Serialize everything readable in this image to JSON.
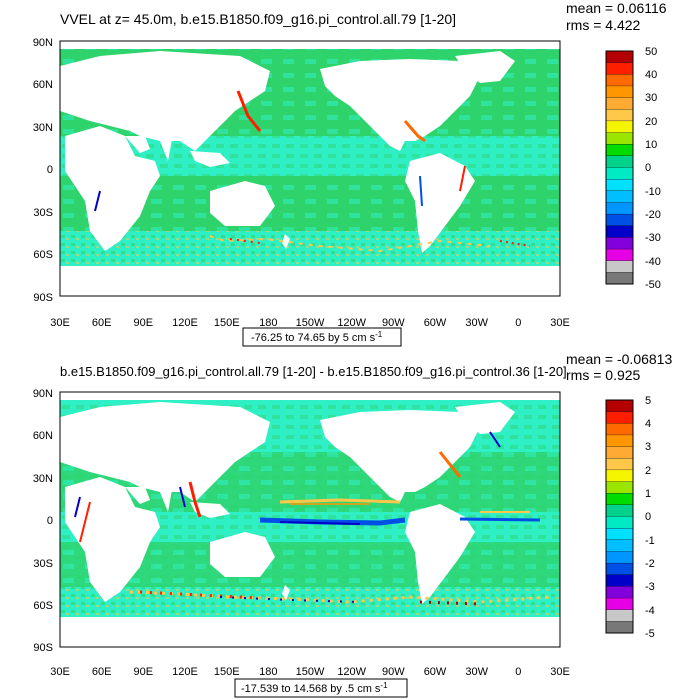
{
  "panels": [
    {
      "title": "VVEL at z=  45.0m, b.e15.B1850.f09_g16.pi_control.all.79 [1-20]",
      "mean_text": "mean = 0.06116",
      "rms_text": "rms = 4.422",
      "range_text": "-76.25 to 74.65 by 5 cm s",
      "range_sup": "-1",
      "colorbar_labels": [
        "50",
        "40",
        "30",
        "20",
        "10",
        "0",
        "-10",
        "-20",
        "-30",
        "-40",
        "-50"
      ]
    },
    {
      "title": "b.e15.B1850.f09_g16.pi_control.all.79 [1-20] - b.e15.B1850.f09_g16.pi_control.36 [1-20]",
      "mean_text": "mean = -0.06813",
      "rms_text": "rms = 0.925",
      "range_text": "-17.539 to 14.568 by .5 cm s",
      "range_sup": "-1",
      "colorbar_labels": [
        "5",
        "4",
        "3",
        "2",
        "1",
        "0",
        "-1",
        "-2",
        "-3",
        "-4",
        "-5"
      ]
    }
  ],
  "colors": {
    "colorbar": [
      "#b40000",
      "#ff1e00",
      "#ff6a00",
      "#ff9600",
      "#ffaa32",
      "#ffc84b",
      "#f5f500",
      "#9be600",
      "#00dc00",
      "#00d28c",
      "#00ebc3",
      "#00e1ff",
      "#00beff",
      "#0096ff",
      "#0050e6",
      "#0000c8",
      "#8200dc",
      "#e600e6",
      "#c8c8c8",
      "#787878"
    ],
    "land": "#ffffff",
    "ocean_a": "#2ed36c",
    "ocean_b": "#2ff0c4",
    "strong_pos": "#ff1e00",
    "strong_neg": "#0000c8"
  },
  "chart_data": [
    {
      "type": "heatmap",
      "title": "VVEL at z=  45.0m, b.e15.B1850.f09_g16.pi_control.all.79 [1-20]",
      "xlabel": "",
      "ylabel": "",
      "x_ticks": [
        "30E",
        "60E",
        "90E",
        "120E",
        "150E",
        "180",
        "150W",
        "120W",
        "90W",
        "60W",
        "30W",
        "0",
        "30E"
      ],
      "y_ticks": [
        "90N",
        "60N",
        "30N",
        "0",
        "30S",
        "60S",
        "90S"
      ],
      "xlim": [
        30,
        390
      ],
      "ylim": [
        -90,
        90
      ],
      "levels_min": -50,
      "levels_max": 50,
      "level_step": 5,
      "data_min": -76.25,
      "data_max": 74.65,
      "units": "cm s-1",
      "mean": 0.06116,
      "rms": 4.422
    },
    {
      "type": "heatmap",
      "title": "b.e15.B1850.f09_g16.pi_control.all.79 [1-20] - b.e15.B1850.f09_g16.pi_control.36 [1-20]",
      "xlabel": "",
      "ylabel": "",
      "x_ticks": [
        "30E",
        "60E",
        "90E",
        "120E",
        "150E",
        "180",
        "150W",
        "120W",
        "90W",
        "60W",
        "30W",
        "0",
        "30E"
      ],
      "y_ticks": [
        "90N",
        "60N",
        "30N",
        "0",
        "30S",
        "60S",
        "90S"
      ],
      "xlim": [
        30,
        390
      ],
      "ylim": [
        -90,
        90
      ],
      "levels_min": -5,
      "levels_max": 5,
      "level_step": 0.5,
      "data_min": -17.539,
      "data_max": 14.568,
      "units": "cm s-1",
      "mean": -0.06813,
      "rms": 0.925
    }
  ]
}
